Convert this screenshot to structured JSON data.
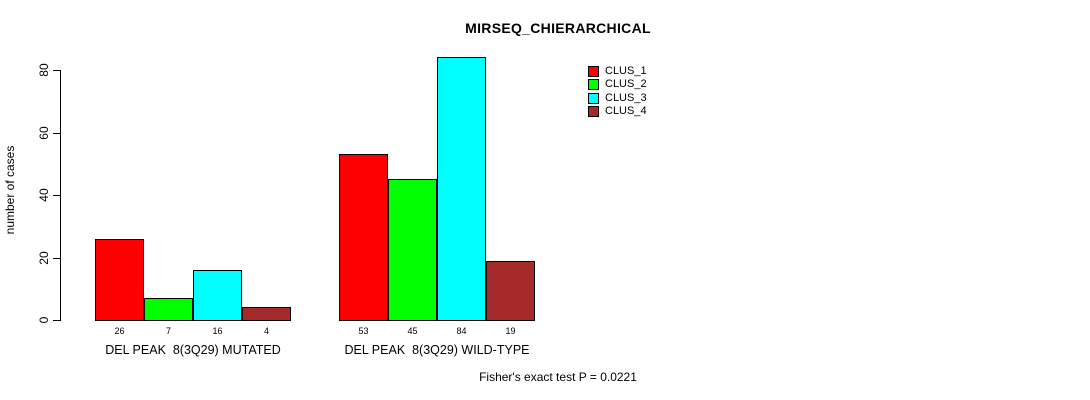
{
  "title": "MIRSEQ_CHIERARCHICAL",
  "footer": "Fisher's exact test P = 0.0221",
  "chart_data": {
    "type": "bar",
    "title": "MIRSEQ_CHIERARCHICAL",
    "xlabel": "",
    "ylabel": "number of cases",
    "ylim": [
      0,
      84
    ],
    "yticks": [
      0,
      20,
      40,
      60,
      80
    ],
    "grid": false,
    "legend_position": "top-right",
    "bar_border_color": "#000000",
    "categories": [
      "DEL PEAK  8(3Q29) MUTATED",
      "DEL PEAK  8(3Q29) WILD-TYPE"
    ],
    "series": [
      {
        "name": "CLUS_1",
        "color": "#ff0000",
        "values": [
          26,
          53
        ]
      },
      {
        "name": "CLUS_2",
        "color": "#00ff00",
        "values": [
          7,
          45
        ]
      },
      {
        "name": "CLUS_3",
        "color": "#00ffff",
        "values": [
          16,
          84
        ]
      },
      {
        "name": "CLUS_4",
        "color": "#a52a2a",
        "values": [
          4,
          19
        ]
      }
    ],
    "annotation": "Fisher's exact test P = 0.0221"
  }
}
